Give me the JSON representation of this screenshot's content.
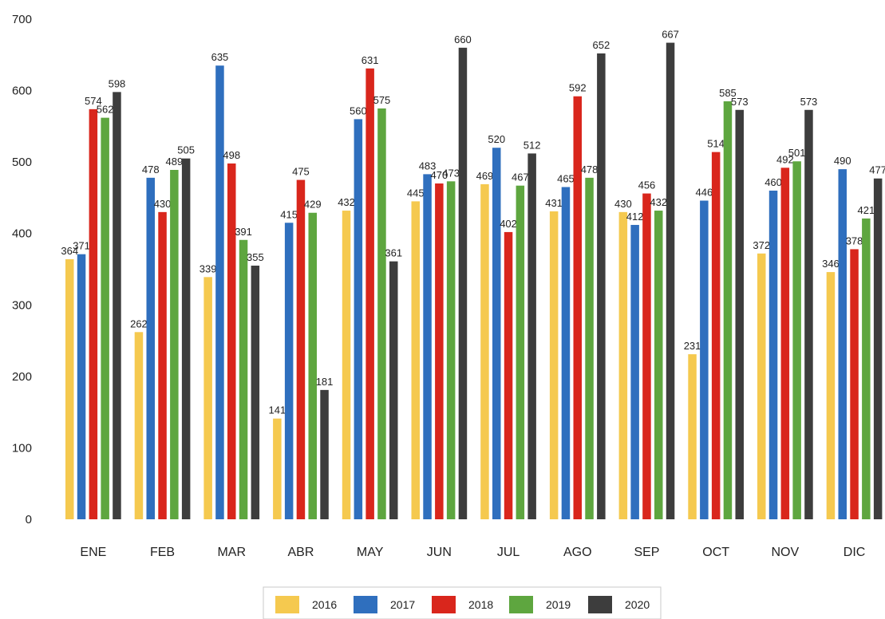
{
  "chart_data": {
    "type": "bar",
    "title": "",
    "xlabel": "",
    "ylabel": "",
    "ylim": [
      0,
      700
    ],
    "yticks": [
      0,
      100,
      200,
      300,
      400,
      500,
      600,
      700
    ],
    "grid": false,
    "legend_position": "bottom",
    "categories": [
      "ENE",
      "FEB",
      "MAR",
      "ABR",
      "MAY",
      "JUN",
      "JUL",
      "AGO",
      "SEP",
      "OCT",
      "NOV",
      "DIC"
    ],
    "series": [
      {
        "name": "2016",
        "color": "#f5c94f",
        "values": [
          364,
          262,
          339,
          141,
          432,
          445,
          469,
          431,
          430,
          231,
          372,
          346
        ]
      },
      {
        "name": "2017",
        "color": "#2f6fbe",
        "values": [
          371,
          478,
          635,
          415,
          560,
          483,
          520,
          465,
          412,
          446,
          460,
          490
        ]
      },
      {
        "name": "2018",
        "color": "#d9261c",
        "values": [
          574,
          430,
          498,
          475,
          631,
          470,
          402,
          592,
          456,
          514,
          492,
          378
        ]
      },
      {
        "name": "2019",
        "color": "#5ea63f",
        "values": [
          562,
          489,
          391,
          429,
          575,
          473,
          467,
          478,
          432,
          585,
          501,
          421
        ]
      },
      {
        "name": "2020",
        "color": "#3d3d3d",
        "values": [
          598,
          505,
          355,
          181,
          361,
          660,
          512,
          652,
          667,
          573,
          573,
          477
        ]
      }
    ]
  }
}
